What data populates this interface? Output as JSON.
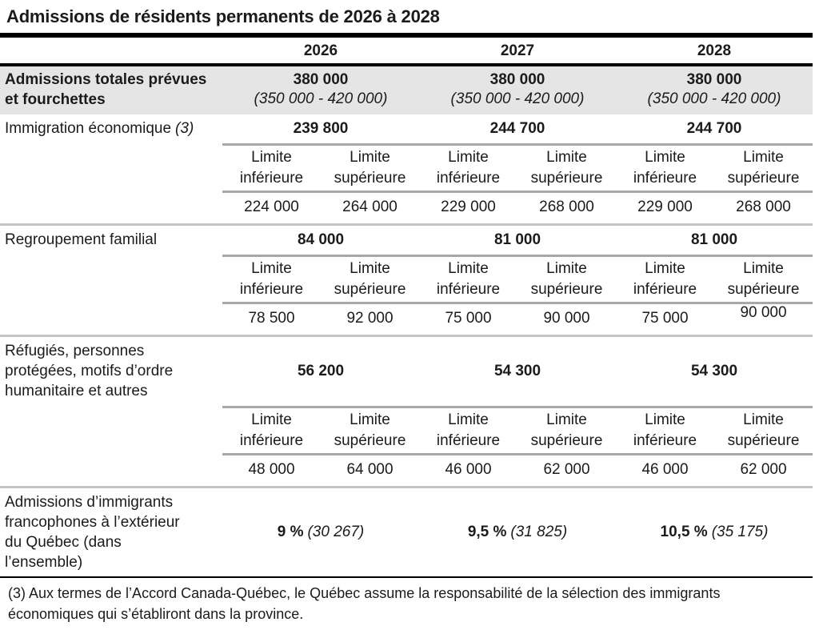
{
  "title": "Admissions de résidents permanents de 2026 à 2028",
  "years": [
    "2026",
    "2027",
    "2028"
  ],
  "total_row": {
    "label": "Admissions totales prévues et fourchettes",
    "values": [
      {
        "total": "380 000",
        "range": "(350 000 - 420 000)"
      },
      {
        "total": "380 000",
        "range": "(350 000 - 420 000)"
      },
      {
        "total": "380 000",
        "range": "(350 000 - 420 000)"
      }
    ]
  },
  "limit_header": {
    "limite": "Limite",
    "inferieure": "inférieure",
    "superieure": "supérieure"
  },
  "sections": [
    {
      "label": "Immigration économique",
      "note": "(3)",
      "totals": [
        "239 800",
        "244 700",
        "244 700"
      ],
      "limits": [
        "224 000",
        "264 000",
        "229 000",
        "268 000",
        "229 000",
        "268 000"
      ]
    },
    {
      "label": "Regroupement familial",
      "totals": [
        "84 000",
        "81 000",
        "81 000"
      ],
      "limits": [
        "78 500",
        "92 000",
        "75 000",
        "90 000",
        "75 000",
        "90 000"
      ]
    },
    {
      "label": "Réfugiés, personnes protégées, motifs d’ordre humanitaire et autres",
      "totals": [
        "56 200",
        "54 300",
        "54 300"
      ],
      "limits": [
        "48 000",
        "64 000",
        "46 000",
        "62 000",
        "46 000",
        "62 000"
      ]
    }
  ],
  "francophone_row": {
    "label": "Admissions d’immigrants francophones à l’extérieur du Québec (dans l’ensemble)",
    "values": [
      {
        "pct": "9 %",
        "abs": "(30 267)"
      },
      {
        "pct": "9,5 %",
        "abs": "(31 825)"
      },
      {
        "pct": "10,5 %",
        "abs": "(35 175)"
      }
    ]
  },
  "footnote": "(3) Aux termes de l’Accord Canada-Québec, le Québec assume la responsabilité de la sélection des immigrants économiques qui s’établiront dans la province.",
  "colors": {
    "band_background": "#e5e5e5",
    "rule_black": "#000000",
    "rule_gray": "#a8a8a8",
    "separator_gray": "#c5c5c5"
  }
}
